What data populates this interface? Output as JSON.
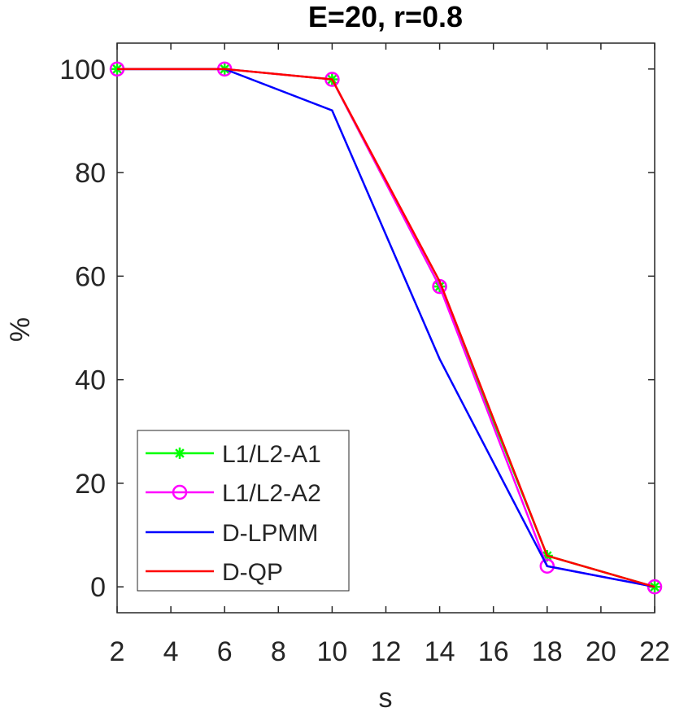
{
  "chart_data": {
    "type": "line",
    "title": "E=20, r=0.8",
    "xlabel": "s",
    "ylabel": "%",
    "xlim": [
      2,
      22
    ],
    "ylim": [
      -5,
      105
    ],
    "xticks": [
      2,
      4,
      6,
      8,
      10,
      12,
      14,
      16,
      18,
      20,
      22
    ],
    "yticks": [
      0,
      20,
      40,
      60,
      80,
      100
    ],
    "grid": false,
    "legend_position": "bottom-left",
    "x": [
      2,
      6,
      10,
      14,
      18,
      22
    ],
    "series": [
      {
        "name": "L1/L2-A1",
        "color": "#00ff00",
        "marker": "asterisk",
        "values": [
          100,
          100,
          98,
          58,
          6,
          0
        ]
      },
      {
        "name": "L1/L2-A2",
        "color": "#ff00ff",
        "marker": "circle",
        "values": [
          100,
          100,
          98,
          58,
          4,
          0
        ]
      },
      {
        "name": "D-LPMM",
        "color": "#0000ff",
        "marker": "none",
        "values": [
          100,
          100,
          92,
          44,
          4,
          0
        ]
      },
      {
        "name": "D-QP",
        "color": "#ff0000",
        "marker": "none",
        "values": [
          100,
          100,
          98,
          59,
          6,
          0
        ]
      }
    ]
  }
}
